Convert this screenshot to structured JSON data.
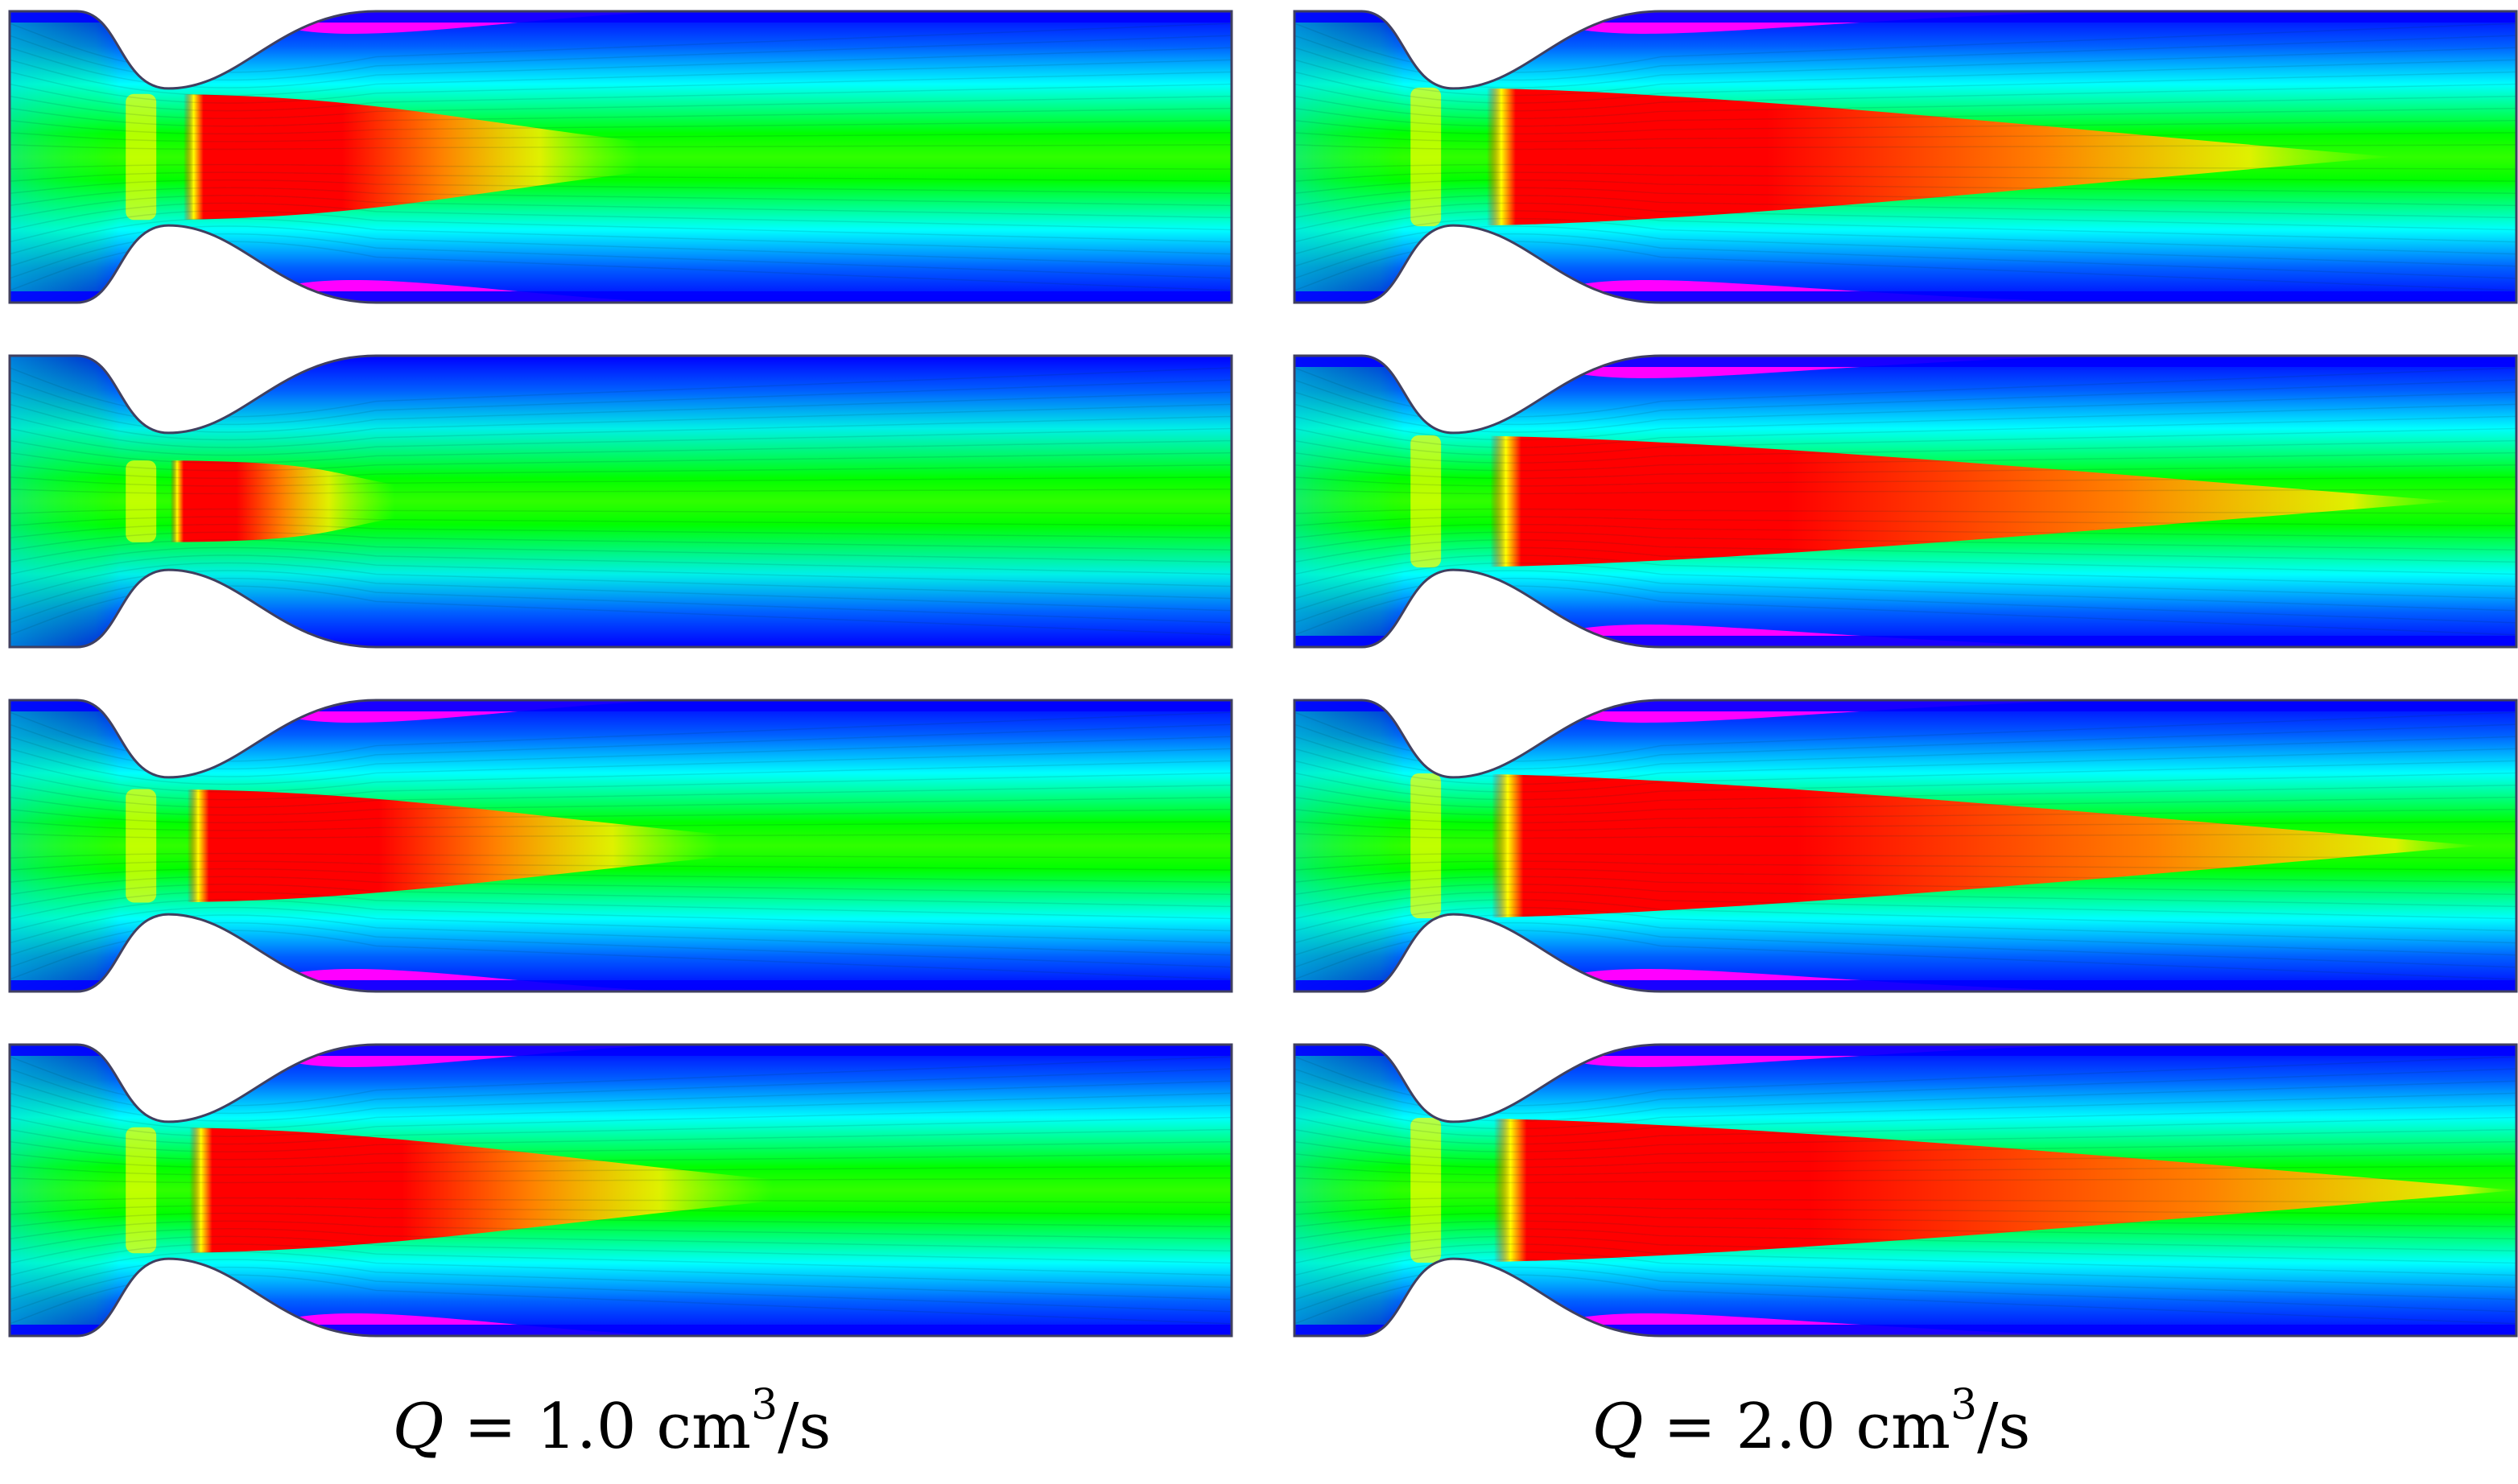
{
  "columns": [
    {
      "id": "left",
      "flow_rate": "1.0",
      "panels": [
        {
          "contrast": 1.0,
          "core_length": 0.6,
          "cyan_wall": false,
          "magenta_wall": true
        },
        {
          "contrast": 0.65,
          "core_length": 0.42,
          "cyan_wall": true,
          "magenta_wall": false
        },
        {
          "contrast": 0.9,
          "core_length": 0.65,
          "cyan_wall": false,
          "magenta_wall": true
        },
        {
          "contrast": 1.0,
          "core_length": 0.68,
          "cyan_wall": false,
          "magenta_wall": true
        }
      ]
    },
    {
      "id": "right",
      "flow_rate": "2.0",
      "panels": [
        {
          "contrast": 1.1,
          "core_length": 0.85,
          "cyan_wall": false,
          "magenta_wall": true
        },
        {
          "contrast": 1.05,
          "core_length": 0.9,
          "cyan_wall": false,
          "magenta_wall": true
        },
        {
          "contrast": 1.15,
          "core_length": 0.92,
          "cyan_wall": false,
          "magenta_wall": true
        },
        {
          "contrast": 1.15,
          "core_length": 0.95,
          "cyan_wall": false,
          "magenta_wall": true
        }
      ]
    }
  ],
  "captions": {
    "left": {
      "symbol": "Q",
      "equals": " = ",
      "value": "1.0",
      "unit": " cm",
      "exponent": "3",
      "per": "/s"
    },
    "right": {
      "symbol": "Q",
      "equals": " = ",
      "value": "2.0",
      "unit": " cm",
      "exponent": "3",
      "per": "/s"
    }
  },
  "colormap": [
    "#0000ff",
    "#00ffff",
    "#00ff00",
    "#ffff00",
    "#ff0000"
  ],
  "wall_color": "#ff00ff"
}
